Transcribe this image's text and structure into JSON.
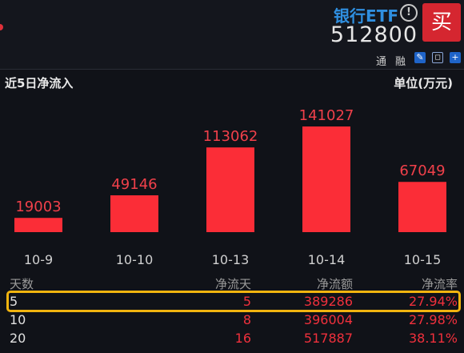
{
  "header": {
    "fund_name": "银行ETF",
    "info_icon": "!",
    "fund_code": "512800",
    "buy_label": "买",
    "tags": [
      "通",
      "融"
    ],
    "toolbar_icons": [
      "edit-icon",
      "bell-icon",
      "add-icon"
    ]
  },
  "section": {
    "title": "近5日净流入",
    "unit": "单位(万元)"
  },
  "chart_data": {
    "type": "bar",
    "categories": [
      "10-9",
      "10-10",
      "10-13",
      "10-14",
      "10-15"
    ],
    "values": [
      19003,
      49146,
      113062,
      141027,
      67049
    ],
    "xlabel": "",
    "ylabel": "",
    "bar_color": "#fb2d37",
    "label_color": "#f0404a"
  },
  "table": {
    "headers": [
      "天数",
      "净流天",
      "净流额",
      "净流率"
    ],
    "rows": [
      {
        "days": "5",
        "net_days": "5",
        "amount": "389286",
        "rate": "27.94%"
      },
      {
        "days": "10",
        "net_days": "8",
        "amount": "396004",
        "rate": "27.98%"
      },
      {
        "days": "20",
        "net_days": "16",
        "amount": "517887",
        "rate": "38.11%"
      }
    ],
    "highlight_color": "#f1b40f"
  }
}
